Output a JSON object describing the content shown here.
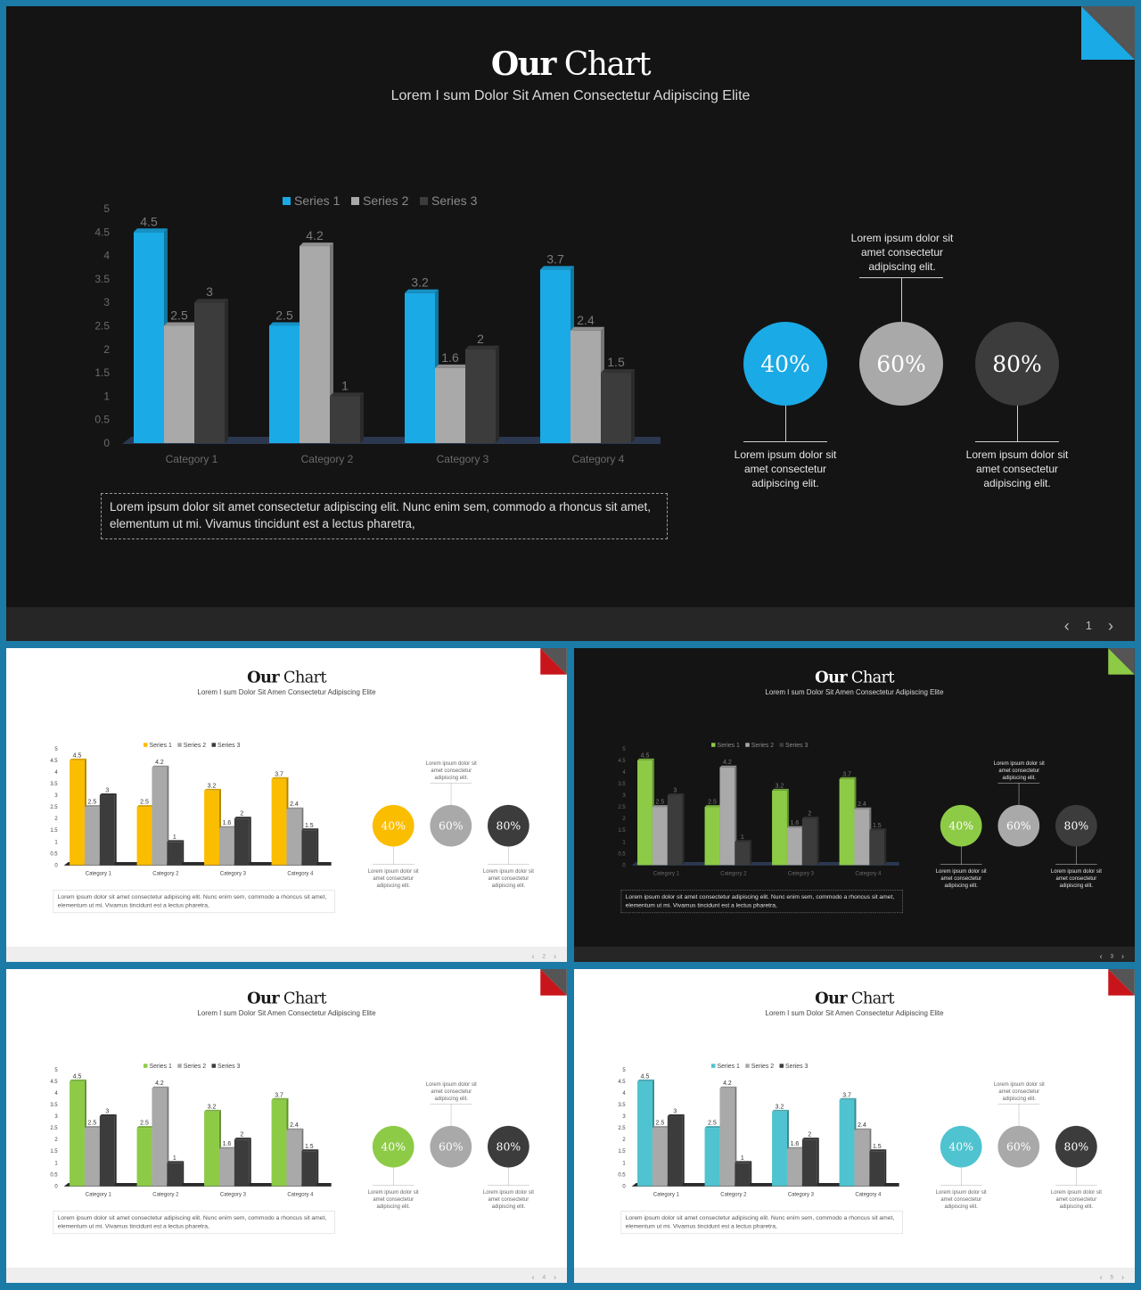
{
  "colors": {
    "series2": "#a9a9a9",
    "series3": "#3c3c3c",
    "circle2": "#a9a9a9",
    "circle3": "#3c3c3c"
  },
  "slides": [
    {
      "theme": "dark",
      "accent": "#1aaae6",
      "corner_color": "#1aaae6",
      "title_bold": "Our",
      "title_rest": "Chart",
      "subtitle": "Lorem I sum Dolor Sit Amen Consectetur Adipiscing Elite",
      "caption": "Lorem ipsum dolor sit amet consectetur adipiscing elit. Nunc enim sem, commodo a rhoncus sit amet, elementum ut mi. Vivamus tincidunt est a lectus pharetra,",
      "circles": [
        {
          "label": "40%",
          "note": "Lorem ipsum dolor sit amet consectetur adipiscing elit."
        },
        {
          "label": "60%",
          "note": "Lorem ipsum dolor sit amet consectetur adipiscing elit."
        },
        {
          "label": "80%",
          "note": "Lorem ipsum dolor sit amet consectetur adipiscing elit."
        }
      ],
      "page": "1"
    },
    {
      "theme": "light",
      "accent": "#fbbd00",
      "corner_color": "#c8151b",
      "title_bold": "Our",
      "title_rest": "Chart",
      "subtitle": "Lorem I sum Dolor Sit Amen Consectetur Adipiscing Elite",
      "caption": "Lorem ipsum dolor sit amet consectetur adipiscing elit. Nunc enim sem, commodo a rhoncus sit amet, elementum ut mi. Vivamus tincidunt est a lectus pharetra,",
      "circles": [
        {
          "label": "40%",
          "note": "Lorem ipsum dolor sit amet consectetur adipiscing elit."
        },
        {
          "label": "60%",
          "note": "Lorem ipsum dolor sit amet consectetur adipiscing elit."
        },
        {
          "label": "80%",
          "note": "Lorem ipsum dolor sit amet consectetur adipiscing elit."
        }
      ],
      "page": "2"
    },
    {
      "theme": "dark",
      "accent": "#8dcb47",
      "corner_color": "#8dcb47",
      "title_bold": "Our",
      "title_rest": "Chart",
      "subtitle": "Lorem I sum Dolor Sit Amen Consectetur Adipiscing Elite",
      "caption": "Lorem ipsum dolor sit amet consectetur adipiscing elit. Nunc enim sem, commodo a rhoncus sit amet, elementum ut mi. Vivamus tincidunt est a lectus pharetra,",
      "circles": [
        {
          "label": "40%",
          "note": "Lorem ipsum dolor sit amet consectetur adipiscing elit."
        },
        {
          "label": "60%",
          "note": "Lorem ipsum dolor sit amet consectetur adipiscing elit."
        },
        {
          "label": "80%",
          "note": "Lorem ipsum dolor sit amet consectetur adipiscing elit."
        }
      ],
      "page": "3"
    },
    {
      "theme": "light",
      "accent": "#8dcb47",
      "corner_color": "#c8151b",
      "title_bold": "Our",
      "title_rest": "Chart",
      "subtitle": "Lorem I sum Dolor Sit Amen Consectetur Adipiscing Elite",
      "caption": "Lorem ipsum dolor sit amet consectetur adipiscing elit. Nunc enim sem, commodo a rhoncus sit amet, elementum ut mi. Vivamus tincidunt est a lectus pharetra,",
      "circles": [
        {
          "label": "40%",
          "note": "Lorem ipsum dolor sit amet consectetur adipiscing elit."
        },
        {
          "label": "60%",
          "note": "Lorem ipsum dolor sit amet consectetur adipiscing elit."
        },
        {
          "label": "80%",
          "note": "Lorem ipsum dolor sit amet consectetur adipiscing elit."
        }
      ],
      "page": "4"
    },
    {
      "theme": "light",
      "accent": "#4fc3cf",
      "corner_color": "#c8151b",
      "title_bold": "Our",
      "title_rest": "Chart",
      "subtitle": "Lorem I sum Dolor Sit Amen Consectetur Adipiscing Elite",
      "caption": "Lorem ipsum dolor sit amet consectetur adipiscing elit. Nunc enim sem, commodo a rhoncus sit amet, elementum ut mi. Vivamus tincidunt est a lectus pharetra,",
      "circles": [
        {
          "label": "40%",
          "note": "Lorem ipsum dolor sit amet consectetur adipiscing elit."
        },
        {
          "label": "60%",
          "note": "Lorem ipsum dolor sit amet consectetur adipiscing elit."
        },
        {
          "label": "80%",
          "note": "Lorem ipsum dolor sit amet consectetur adipiscing elit."
        }
      ],
      "page": "5"
    }
  ],
  "chart_data": {
    "type": "bar",
    "categories": [
      "Category 1",
      "Category 2",
      "Category 3",
      "Category 4"
    ],
    "series": [
      {
        "name": "Series 1",
        "values": [
          4.5,
          2.5,
          3.2,
          3.7
        ]
      },
      {
        "name": "Series 2",
        "values": [
          2.5,
          4.2,
          1.6,
          2.4
        ]
      },
      {
        "name": "Series 3",
        "values": [
          3,
          1,
          2,
          1.5
        ]
      }
    ],
    "y_ticks": [
      "0",
      "0.5",
      "1",
      "1.5",
      "2",
      "2.5",
      "3",
      "3.5",
      "4",
      "4.5",
      "5"
    ],
    "ylim": [
      0,
      5
    ],
    "legend": "top",
    "grid": false
  }
}
